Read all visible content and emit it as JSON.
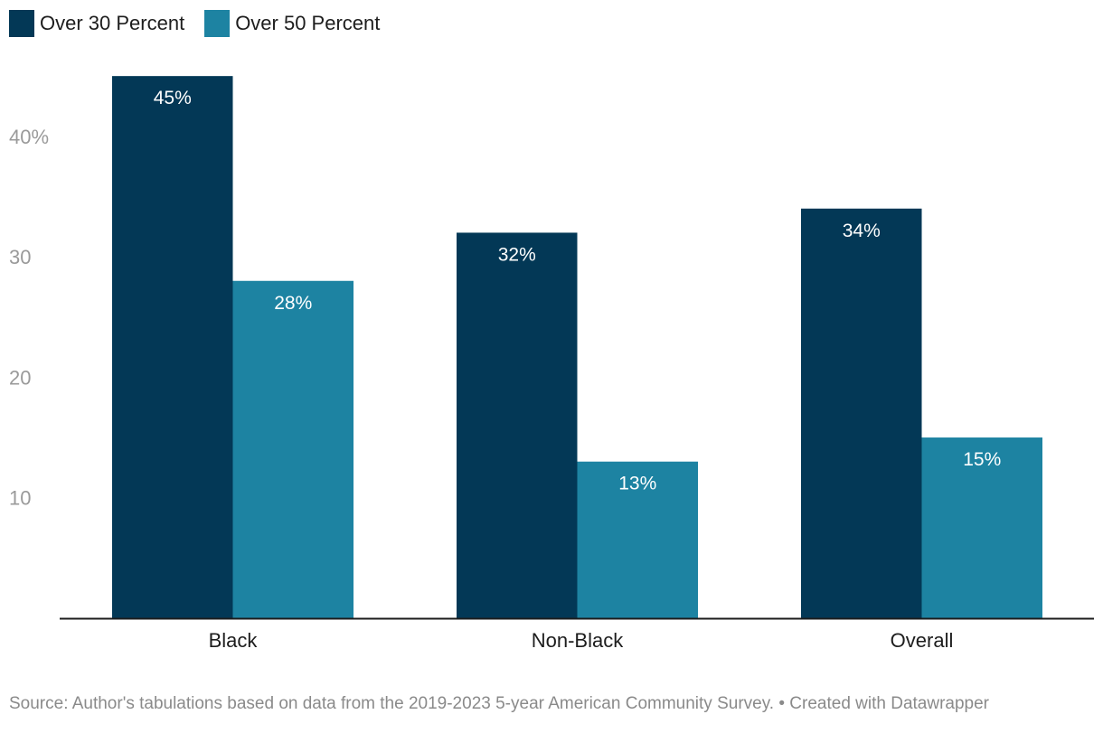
{
  "legend": [
    {
      "label": "Over 30 Percent",
      "color": "#033856"
    },
    {
      "label": "Over 50 Percent",
      "color": "#1d83a2"
    }
  ],
  "chart_data": {
    "type": "bar",
    "categories": [
      "Black",
      "Non-Black",
      "Overall"
    ],
    "series": [
      {
        "name": "Over 30 Percent",
        "values": [
          45,
          32,
          34
        ],
        "labels": [
          "45%",
          "32%",
          "34%"
        ],
        "color": "#033856"
      },
      {
        "name": "Over 50 Percent",
        "values": [
          28,
          13,
          15
        ],
        "labels": [
          "28%",
          "13%",
          "15%"
        ],
        "color": "#1d83a2"
      }
    ],
    "yticks": [
      {
        "value": 10,
        "label": "10"
      },
      {
        "value": 20,
        "label": "20"
      },
      {
        "value": 30,
        "label": "30"
      },
      {
        "value": 40,
        "label": "40%"
      }
    ],
    "ylim": [
      0,
      45
    ],
    "grid": false
  },
  "footer": {
    "source": "Source: Author's tabulations based on data from the 2019-2023 5-year American Community Survey. • Created with Datawrapper"
  }
}
